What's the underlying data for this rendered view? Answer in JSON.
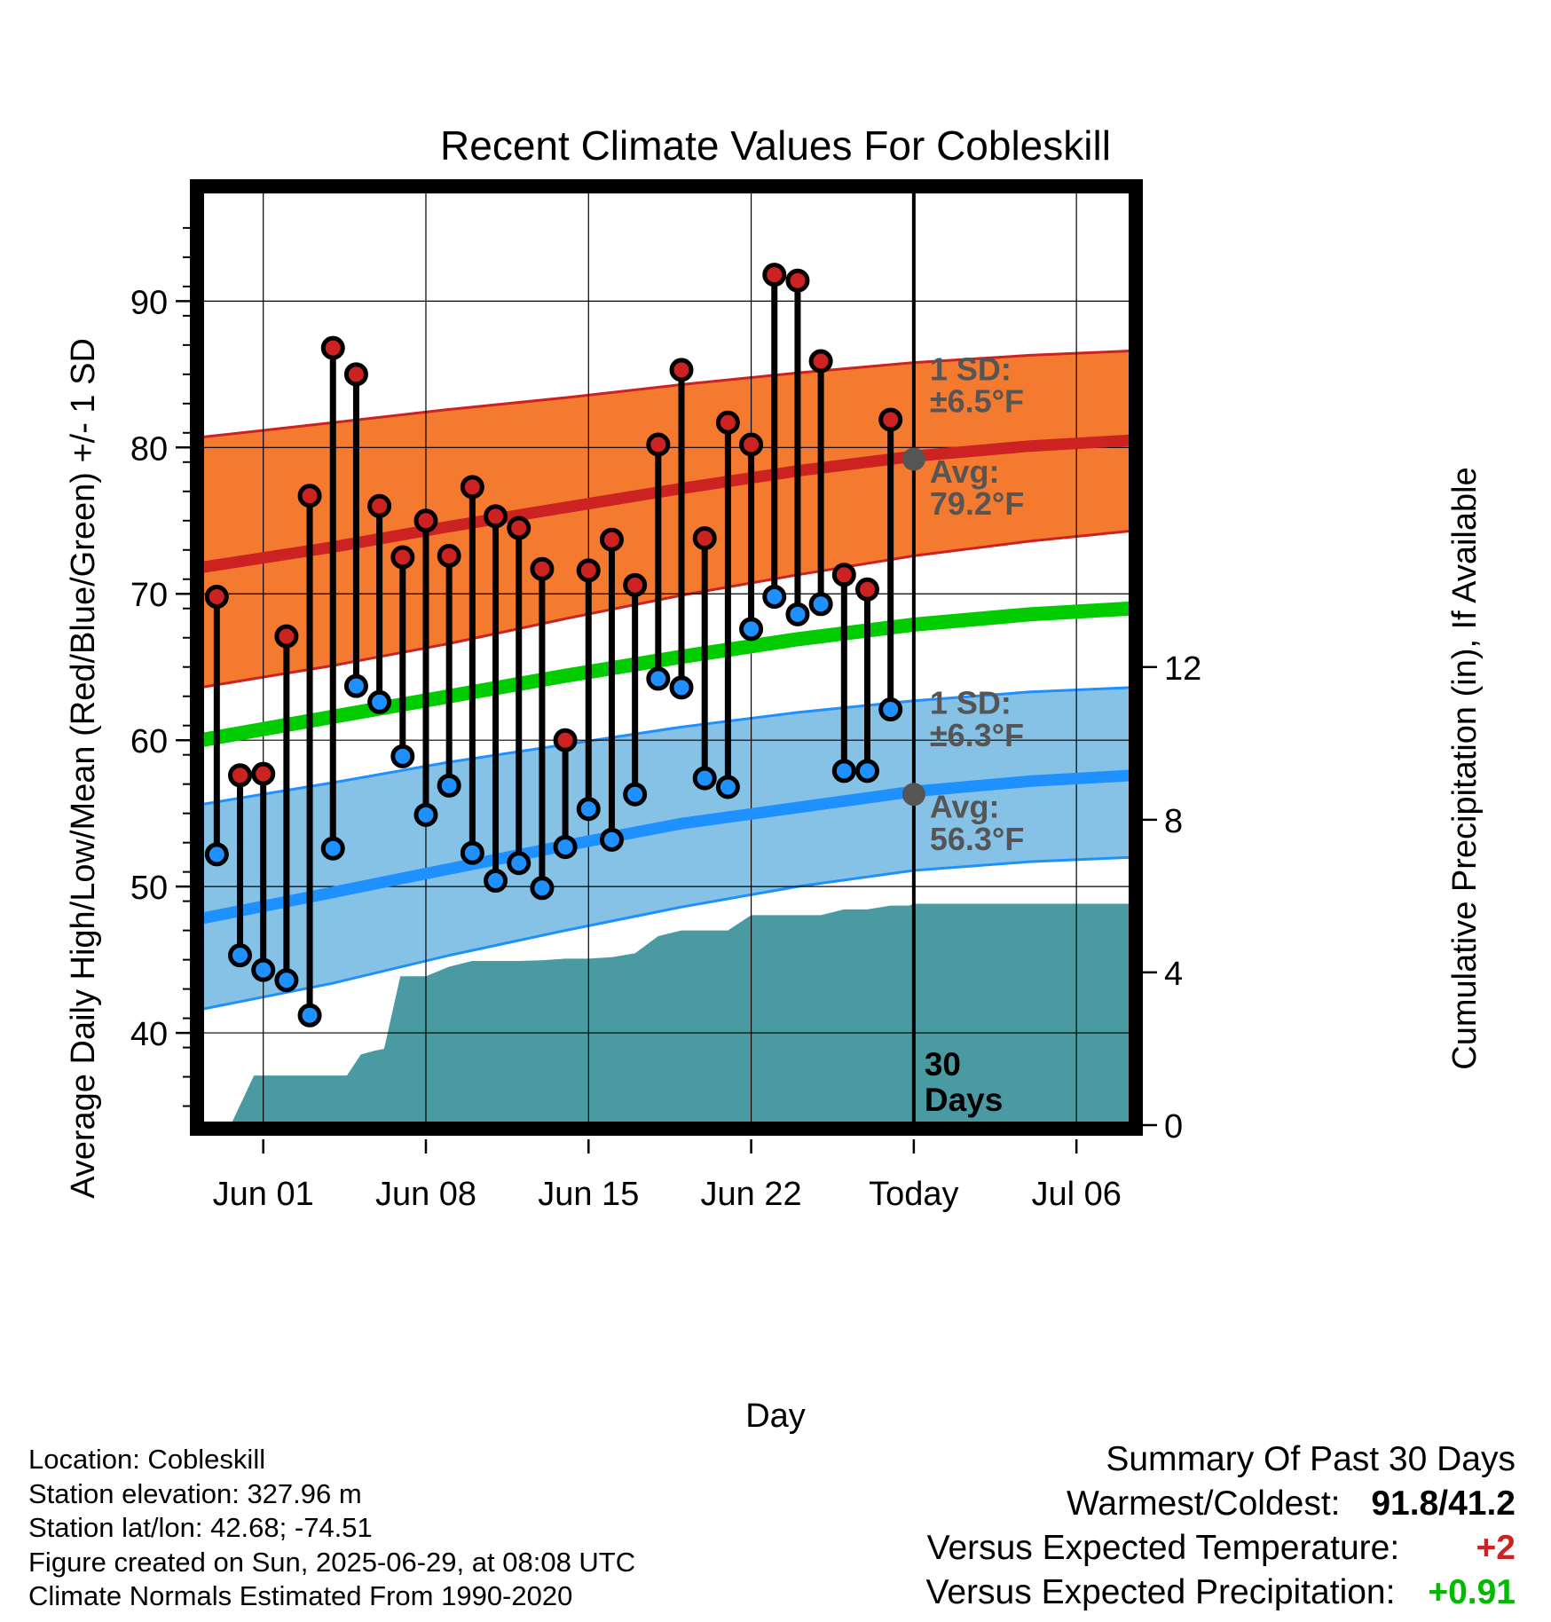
{
  "chart_data": {
    "type": "line",
    "title": "Recent Climate Values For Cobleskill",
    "xlabel": "Day",
    "ylabel": "Average Daily High/Low/Mean (Red/Blue/Green) +/- 1 SD",
    "ylabel_right": "Cumulative Precipitation (in), If Available",
    "x_tick_labels": [
      "Jun 01",
      "Jun 08",
      "Jun 15",
      "Jun 22",
      "Today",
      "Jul 06"
    ],
    "x_tick_days": [
      2,
      9,
      16,
      23,
      30,
      37
    ],
    "y_ticks": [
      40,
      50,
      60,
      70,
      80,
      90
    ],
    "y_ticks_right": [
      0,
      4,
      8,
      12
    ],
    "ylim": [
      33.7,
      97.6
    ],
    "ylim_right": [
      0,
      24.5
    ],
    "xlim": [
      -0.7,
      39.4
    ],
    "grid": true,
    "normals": {
      "x": [
        -0.7,
        5,
        10,
        15,
        20,
        25,
        30,
        35,
        39.4
      ],
      "high_mean": [
        71.8,
        73.2,
        74.6,
        75.9,
        77.2,
        78.4,
        79.4,
        80.1,
        80.5
      ],
      "high_upper": [
        80.7,
        81.7,
        82.6,
        83.4,
        84.3,
        85.1,
        85.8,
        86.3,
        86.6
      ],
      "high_lower": [
        63.6,
        65.1,
        66.6,
        68.3,
        69.9,
        71.3,
        72.6,
        73.6,
        74.3
      ],
      "mean_mean": [
        60.0,
        61.6,
        63.0,
        64.4,
        65.7,
        66.9,
        67.9,
        68.6,
        69.0
      ],
      "low_mean": [
        47.8,
        49.6,
        51.2,
        52.8,
        54.3,
        55.4,
        56.5,
        57.2,
        57.6
      ],
      "low_upper": [
        55.6,
        57.1,
        58.5,
        59.7,
        60.9,
        61.9,
        62.7,
        63.3,
        63.6
      ],
      "low_lower": [
        41.6,
        43.4,
        45.3,
        47.0,
        48.6,
        50.0,
        51.1,
        51.7,
        52.0
      ]
    },
    "today_high_avg": 79.2,
    "today_low_avg": 56.3,
    "days": [
      0,
      1,
      2,
      3,
      4,
      5,
      6,
      7,
      8,
      9,
      10,
      11,
      12,
      13,
      14,
      15,
      16,
      17,
      18,
      19,
      20,
      21,
      22,
      23,
      24,
      25,
      26,
      27,
      28,
      29
    ],
    "highs": [
      69.8,
      57.6,
      57.7,
      67.1,
      76.7,
      86.8,
      85.0,
      76.0,
      72.5,
      75.0,
      72.6,
      77.3,
      75.3,
      74.5,
      71.7,
      60.0,
      71.6,
      73.7,
      70.6,
      80.2,
      85.3,
      73.8,
      81.7,
      80.2,
      91.8,
      91.4,
      85.9,
      71.3,
      70.3,
      81.9
    ],
    "lows": [
      52.2,
      45.3,
      44.3,
      43.6,
      41.2,
      52.6,
      63.7,
      62.6,
      58.9,
      54.9,
      56.9,
      52.3,
      50.4,
      51.6,
      49.9,
      52.7,
      55.3,
      53.2,
      56.3,
      64.2,
      63.6,
      57.4,
      56.8,
      67.6,
      69.8,
      68.6,
      69.3,
      57.9,
      57.9,
      62.1
    ],
    "precip_cumulative": {
      "x": [
        -0.7,
        0.2,
        0.6,
        1.6,
        2.0,
        3.0,
        3.5,
        4.0,
        5.0,
        5.6,
        6.2,
        6.8,
        7.2,
        7.9,
        8.5,
        9.0,
        10.0,
        11.0,
        12.0,
        13.0,
        14.0,
        15.0,
        16.0,
        17.0,
        18.0,
        19.0,
        20.0,
        21.0,
        22.0,
        23.0,
        24.0,
        25.0,
        26.0,
        27.0,
        28.0,
        29.0,
        29.8,
        30.0,
        39.4
      ],
      "y": [
        0,
        0,
        0,
        1.3,
        1.3,
        1.3,
        1.3,
        1.3,
        1.3,
        1.3,
        1.85,
        1.95,
        2.0,
        3.9,
        3.9,
        3.9,
        4.15,
        4.3,
        4.3,
        4.3,
        4.32,
        4.36,
        4.36,
        4.4,
        4.5,
        4.95,
        5.1,
        5.1,
        5.1,
        5.5,
        5.5,
        5.5,
        5.5,
        5.65,
        5.65,
        5.75,
        5.75,
        5.8,
        5.8
      ]
    },
    "series": [
      {
        "name": "High",
        "color": "#cc2222"
      },
      {
        "name": "Low",
        "color": "#1e90ff"
      },
      {
        "name": "Mean",
        "color": "#00cc00"
      }
    ],
    "annotations": {
      "high_sd_label": "1 SD:",
      "high_sd_value": "±6.5°F",
      "high_avg_label": "Avg:",
      "high_avg_value": "79.2°F",
      "low_sd_label": "1 SD:",
      "low_sd_value": "±6.3°F",
      "low_avg_label": "Avg:",
      "low_avg_value": "56.3°F",
      "days_count": "30",
      "days_word": "Days"
    }
  },
  "colors": {
    "high_band": "#f47a2f",
    "high_line": "#cc2222",
    "low_band": "#85c2e6",
    "low_line": "#1e90ff",
    "mean_line": "#00cc00",
    "precip": "#4a9aa2",
    "avg_dot": "#555555"
  },
  "station_info": {
    "location": "Location: Cobleskill",
    "elevation": "Station elevation: 327.96 m",
    "latlon": "Station lat/lon: 42.68; -74.51",
    "created": "Figure created on Sun, 2025-06-29, at 08:08 UTC",
    "normals": "Climate Normals Estimated From 1990-2020"
  },
  "summary": {
    "title": "Summary Of Past 30 Days",
    "warm_cold_label": "Warmest/Coldest:",
    "warmest": "91.8",
    "slash": "/",
    "coldest": "41.2",
    "temp_label": "Versus Expected Temperature:",
    "temp_value": "+2",
    "temp_color": "#cc2222",
    "precip_label": "Versus Expected Precipitation:",
    "precip_value": "+0.91",
    "precip_color": "#00bb00"
  }
}
